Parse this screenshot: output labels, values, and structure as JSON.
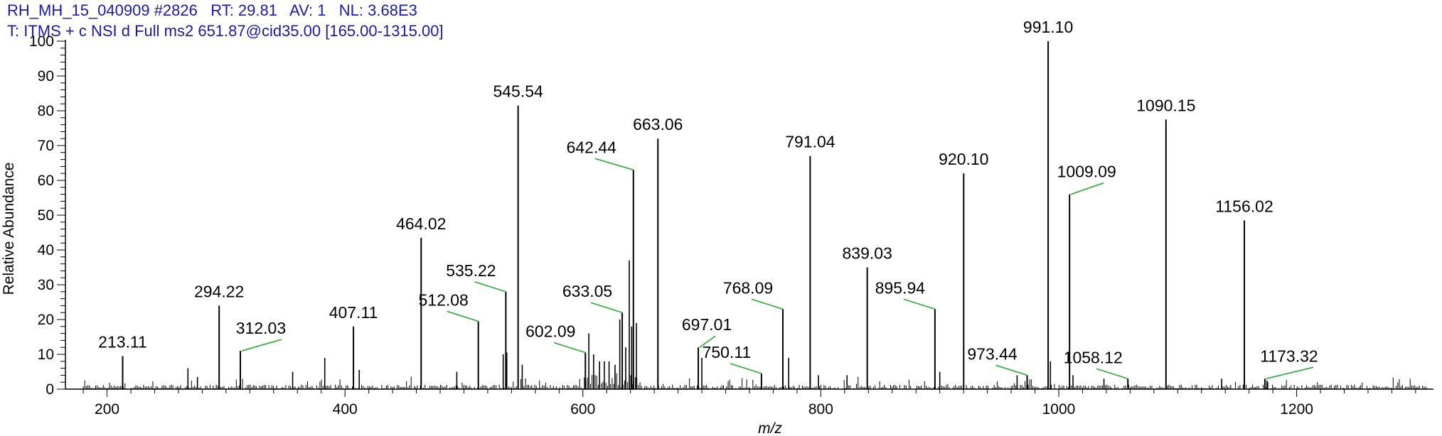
{
  "header": {
    "line1": "RH_MH_15_040909 #2826   RT: 29.81   AV: 1   NL: 3.68E3",
    "line2": "T: ITMS + c NSI d Full ms2 651.87@cid35.00 [165.00-1315.00]"
  },
  "colors": {
    "header_text": "#1a1aa6",
    "leader": "#3cb043",
    "peak": "#000000"
  },
  "chart_data": {
    "type": "bar",
    "title": "",
    "xlabel": "m/z",
    "ylabel": "Relative Abundance",
    "xlim": [
      165,
      1315
    ],
    "ylim": [
      0,
      100
    ],
    "x_ticks": [
      200,
      400,
      600,
      800,
      1000,
      1200
    ],
    "y_ticks": [
      0,
      10,
      20,
      30,
      40,
      50,
      60,
      70,
      80,
      90,
      100
    ],
    "grid": false,
    "peaks": [
      {
        "mz": 213.11,
        "abundance": 9.5,
        "label": "213.11"
      },
      {
        "mz": 294.22,
        "abundance": 24,
        "label": "294.22"
      },
      {
        "mz": 312.03,
        "abundance": 11,
        "label": "312.03"
      },
      {
        "mz": 407.11,
        "abundance": 18,
        "label": "407.11"
      },
      {
        "mz": 464.02,
        "abundance": 43.5,
        "label": "464.02"
      },
      {
        "mz": 512.08,
        "abundance": 19.5,
        "label": "512.08"
      },
      {
        "mz": 535.22,
        "abundance": 28,
        "label": "535.22"
      },
      {
        "mz": 545.54,
        "abundance": 81.5,
        "label": "545.54"
      },
      {
        "mz": 602.09,
        "abundance": 10.5,
        "label": "602.09"
      },
      {
        "mz": 633.05,
        "abundance": 22,
        "label": "633.05"
      },
      {
        "mz": 642.44,
        "abundance": 63,
        "label": "642.44"
      },
      {
        "mz": 663.06,
        "abundance": 72,
        "label": "663.06"
      },
      {
        "mz": 697.01,
        "abundance": 12,
        "label": "697.01"
      },
      {
        "mz": 750.11,
        "abundance": 4.5,
        "label": "750.11"
      },
      {
        "mz": 768.09,
        "abundance": 23,
        "label": "768.09"
      },
      {
        "mz": 791.04,
        "abundance": 67,
        "label": "791.04"
      },
      {
        "mz": 839.03,
        "abundance": 35,
        "label": "839.03"
      },
      {
        "mz": 895.94,
        "abundance": 23,
        "label": "895.94"
      },
      {
        "mz": 920.1,
        "abundance": 62,
        "label": "920.10"
      },
      {
        "mz": 973.44,
        "abundance": 4,
        "label": "973.44"
      },
      {
        "mz": 991.1,
        "abundance": 100,
        "label": "991.10"
      },
      {
        "mz": 1009.09,
        "abundance": 56,
        "label": "1009.09"
      },
      {
        "mz": 1058.12,
        "abundance": 3,
        "label": "1058.12"
      },
      {
        "mz": 1090.15,
        "abundance": 77.5,
        "label": "1090.15"
      },
      {
        "mz": 1156.02,
        "abundance": 48.5,
        "label": "1156.02"
      },
      {
        "mz": 1173.32,
        "abundance": 3,
        "label": "1173.32"
      }
    ],
    "minor_peaks": [
      {
        "mz": 268,
        "abundance": 6
      },
      {
        "mz": 276,
        "abundance": 3.5
      },
      {
        "mz": 356,
        "abundance": 5
      },
      {
        "mz": 383,
        "abundance": 9
      },
      {
        "mz": 412,
        "abundance": 5.5
      },
      {
        "mz": 494,
        "abundance": 5
      },
      {
        "mz": 533,
        "abundance": 10
      },
      {
        "mz": 536,
        "abundance": 10.5
      },
      {
        "mz": 549,
        "abundance": 7
      },
      {
        "mz": 605,
        "abundance": 16
      },
      {
        "mz": 609,
        "abundance": 10
      },
      {
        "mz": 614,
        "abundance": 8
      },
      {
        "mz": 618,
        "abundance": 8
      },
      {
        "mz": 622,
        "abundance": 8
      },
      {
        "mz": 627,
        "abundance": 7
      },
      {
        "mz": 631,
        "abundance": 20
      },
      {
        "mz": 636,
        "abundance": 12
      },
      {
        "mz": 639,
        "abundance": 37
      },
      {
        "mz": 641,
        "abundance": 18
      },
      {
        "mz": 645,
        "abundance": 19
      },
      {
        "mz": 700,
        "abundance": 9
      },
      {
        "mz": 773,
        "abundance": 9
      },
      {
        "mz": 798,
        "abundance": 4
      },
      {
        "mz": 822,
        "abundance": 4
      },
      {
        "mz": 900,
        "abundance": 5
      },
      {
        "mz": 965,
        "abundance": 4
      },
      {
        "mz": 993,
        "abundance": 8
      },
      {
        "mz": 1012,
        "abundance": 4
      },
      {
        "mz": 1038,
        "abundance": 3
      },
      {
        "mz": 1137,
        "abundance": 3
      },
      {
        "mz": 1175,
        "abundance": 2.5
      }
    ]
  }
}
